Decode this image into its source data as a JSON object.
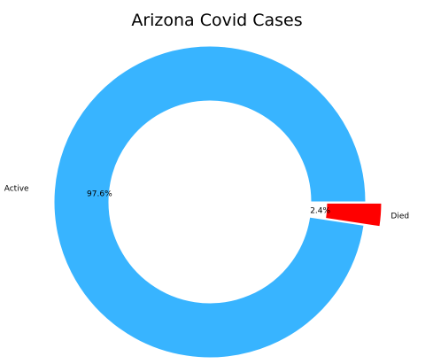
{
  "chart_data": {
    "type": "pie",
    "variant": "donut",
    "title": "Arizona Covid  Cases",
    "slices": [
      {
        "label": "Active",
        "value": 97.6,
        "percent_label": "97.6%",
        "color": "#38b4ff",
        "exploded": false
      },
      {
        "label": "Died",
        "value": 2.4,
        "percent_label": "2.4%",
        "color": "#ff0000",
        "exploded": true
      }
    ],
    "legend": "none"
  }
}
